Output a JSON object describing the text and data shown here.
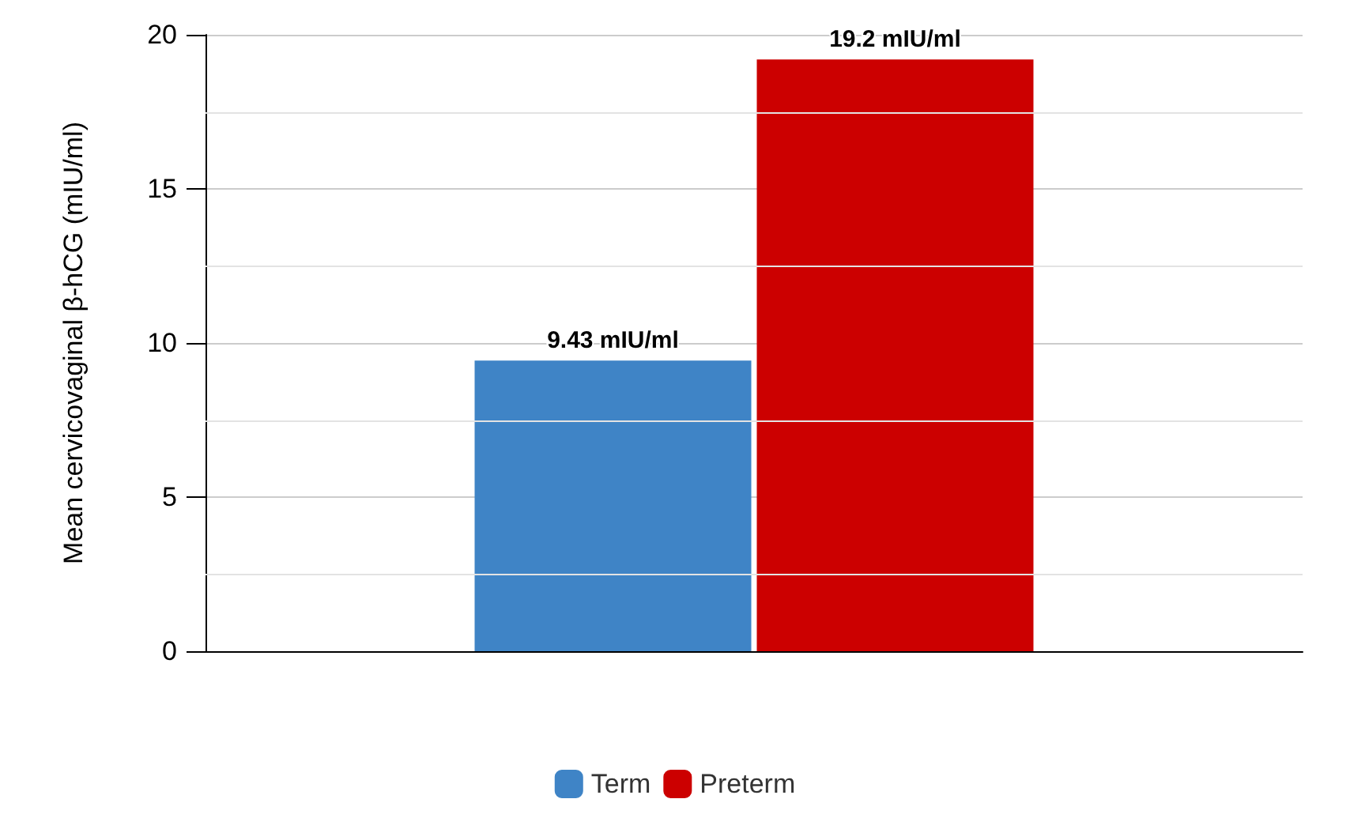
{
  "chart_data": {
    "type": "bar",
    "ylabel": "Mean cervicovaginal β-hCG (mIU/ml)",
    "categories": [
      null
    ],
    "series": [
      {
        "name": "Term",
        "color": "#3f84c6",
        "values": [
          9.43
        ],
        "value_labels": [
          "9.43 mIU/ml"
        ]
      },
      {
        "name": "Preterm",
        "color": "#cc0000",
        "values": [
          19.2
        ],
        "value_labels": [
          "19.2 mIU/ml"
        ]
      }
    ],
    "ylim": [
      0,
      20
    ],
    "yticks": [
      0,
      5,
      10,
      15,
      20
    ],
    "grid": "y",
    "legend": "bottom"
  }
}
